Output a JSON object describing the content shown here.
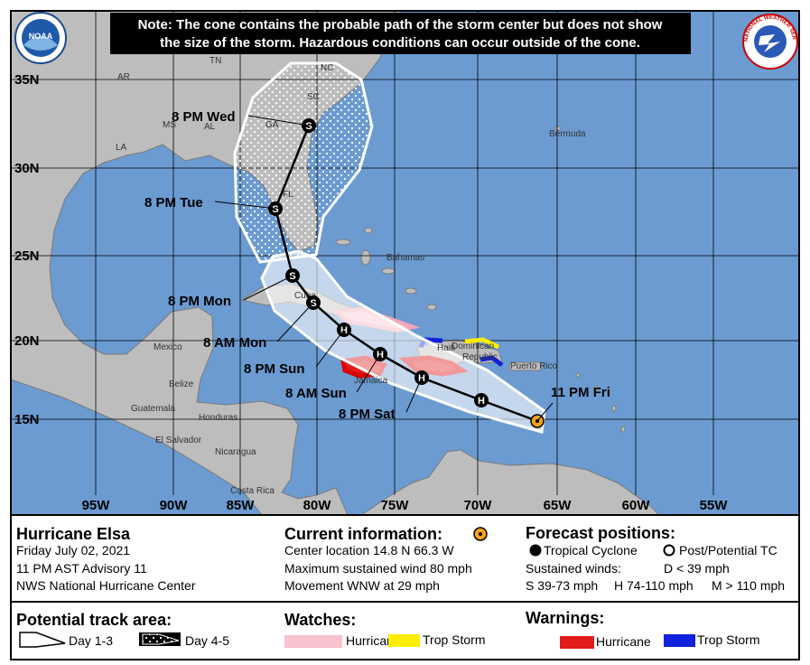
{
  "note": [
    "Note: The cone contains the probable path of the storm center but does not show",
    "the size of the storm. Hazardous conditions can occur outside of the cone."
  ],
  "logos": {
    "noaa": "NOAA",
    "nws": "NATIONAL WEATHER SERVICE"
  },
  "latitudes": [
    "35N",
    "30N",
    "25N",
    "20N",
    "15N"
  ],
  "longitudes": [
    "95W",
    "90W",
    "85W",
    "80W",
    "75W",
    "70W",
    "65W",
    "60W",
    "55W"
  ],
  "places": [
    "TN",
    "NC",
    "AR",
    "SC",
    "MS",
    "AL",
    "GA",
    "LA",
    "FL",
    "Bermuda",
    "Bahamas",
    "Mexico",
    "Cuba",
    "Belize",
    "Jamaica",
    "Haiti",
    "Dominican",
    "Republic",
    "Puerto Rico",
    "Guatemala",
    "Honduras",
    "El Salvador",
    "Nicaragua",
    "Costa Rica"
  ],
  "track_labels": [
    "11 PM Fri",
    "8 PM Sat",
    "8 AM Sun",
    "8 PM Sun",
    "8 AM Mon",
    "8 PM Mon",
    "8 PM Tue",
    "8 PM Wed"
  ],
  "track_points": [
    "H",
    "H",
    "H",
    "H",
    "S",
    "S",
    "S",
    "S"
  ],
  "storm": {
    "name": "Hurricane Elsa",
    "date": "Friday July 02, 2021",
    "advisory": "11 PM AST Advisory 11",
    "source": "NWS National Hurricane Center"
  },
  "current": {
    "title": "Current information:",
    "lines": [
      "Center location 14.8 N 66.3 W",
      "Maximum sustained wind 80 mph",
      "Movement WNW at 29 mph"
    ]
  },
  "forecast": {
    "title": "Forecast positions:",
    "tropical": "Tropical Cyclone",
    "post": "Post/Potential TC",
    "winds_label": "Sustained winds:",
    "d": "D < 39 mph",
    "s": "S 39-73 mph",
    "h": "H 74-110 mph",
    "m": "M > 110 mph"
  },
  "track_area": {
    "title": "Potential track area:",
    "day13": "Day 1-3",
    "day45": "Day 4-5"
  },
  "watches": {
    "title": "Watches:",
    "hurricane": "Hurricane",
    "trop_storm": "Trop Storm"
  },
  "warnings": {
    "title": "Warnings:",
    "hurricane": "Hurricane",
    "trop_storm": "Trop Storm"
  }
}
